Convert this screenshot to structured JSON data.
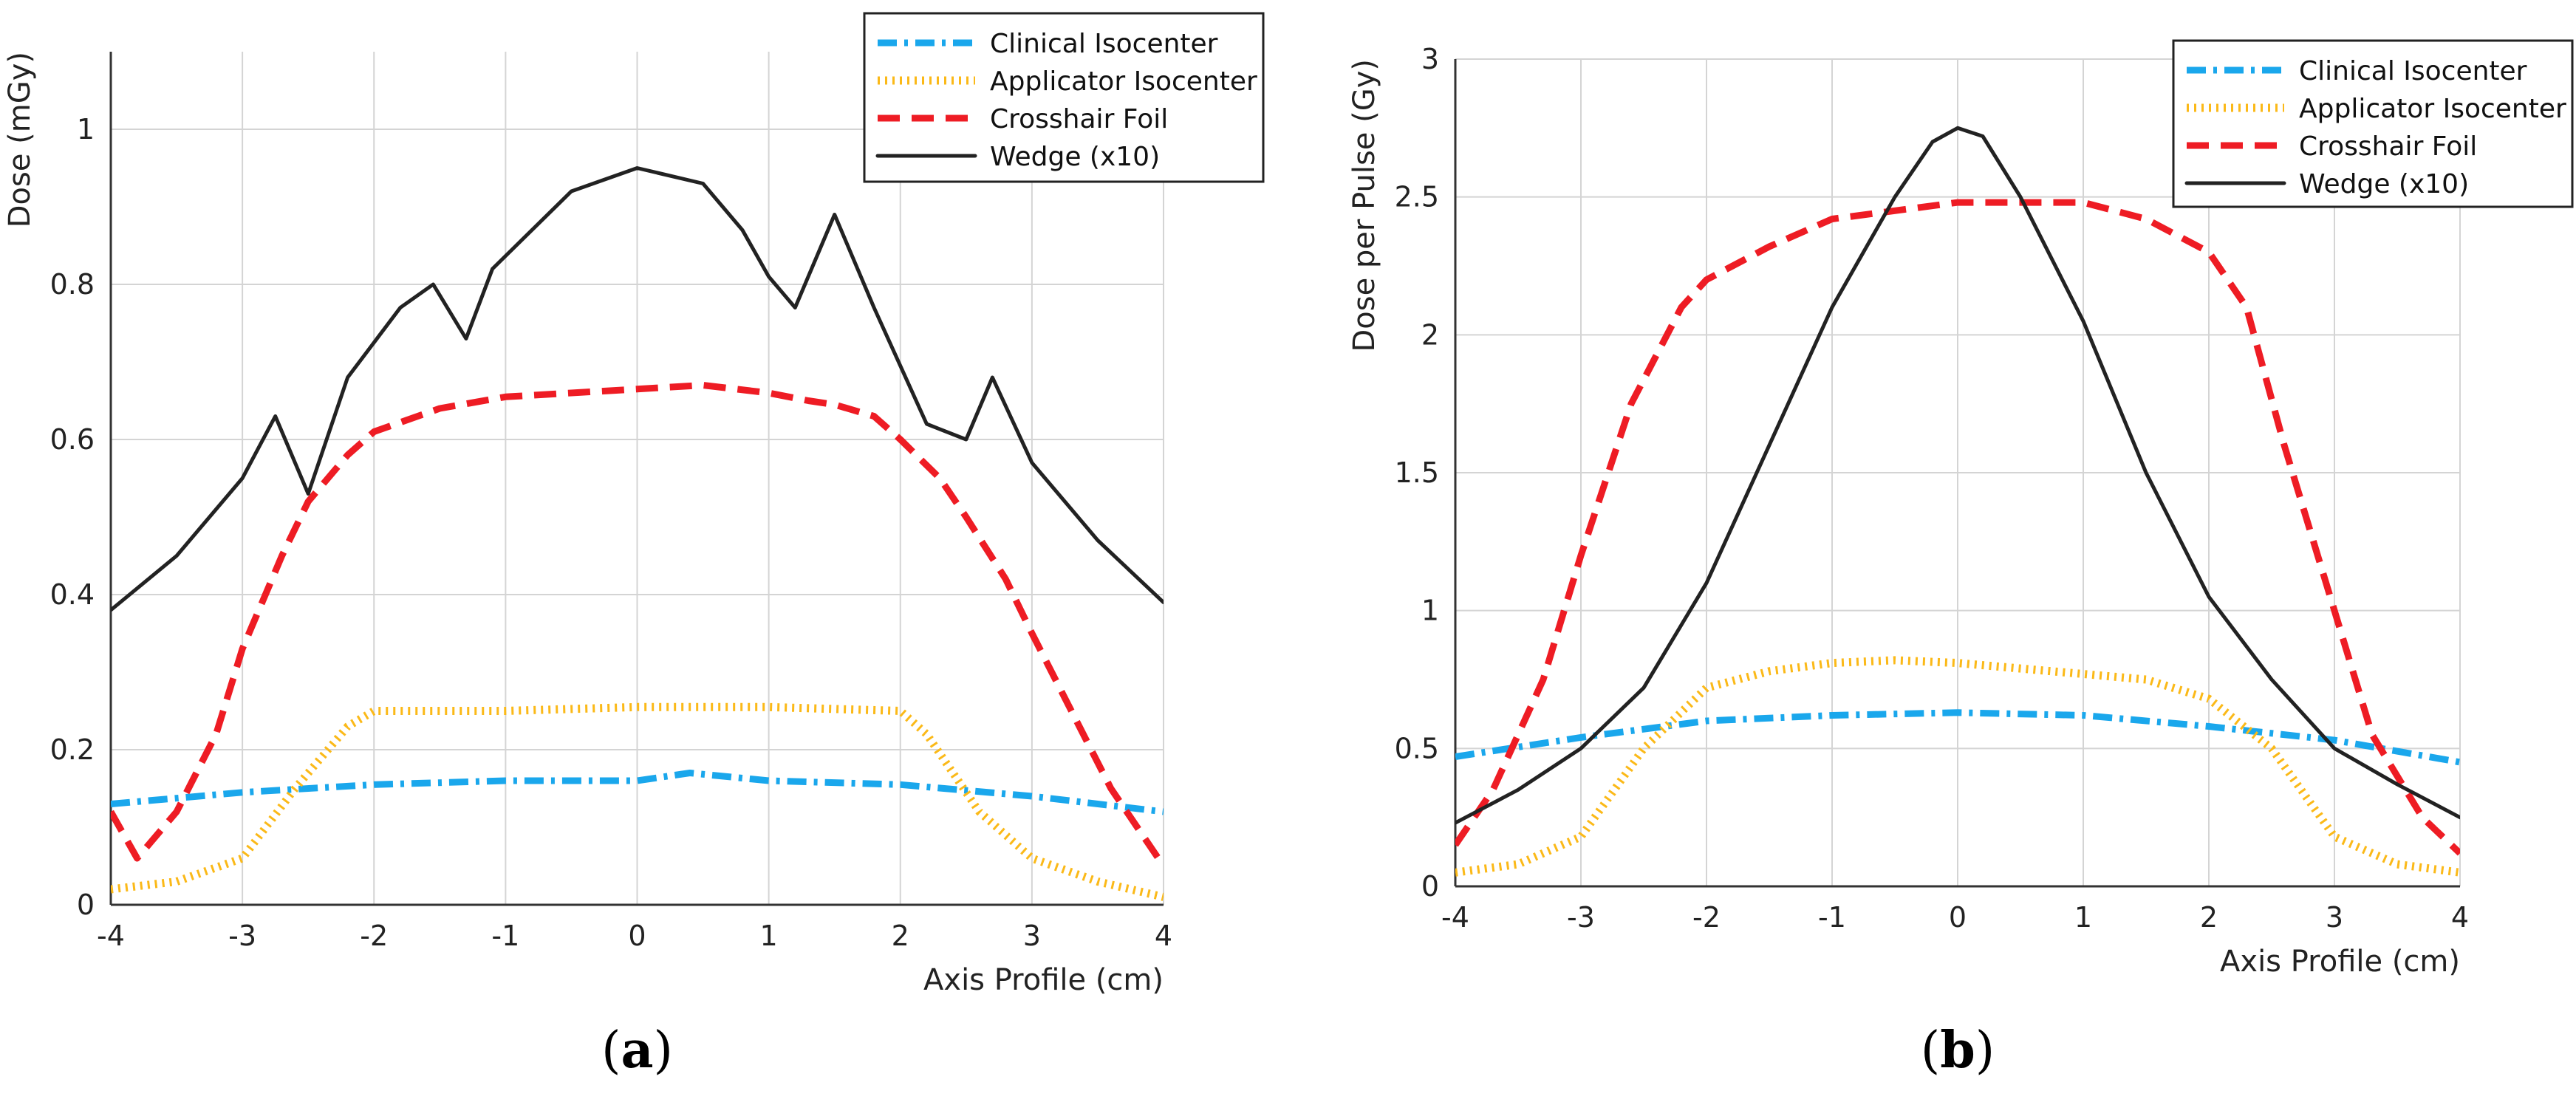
{
  "colors": {
    "clinical": "#1aa7ec",
    "applicator": "#fbb918",
    "crosshair": "#ee1c24",
    "wedge": "#222222",
    "grid": "#d4d4d4",
    "axis": "#333333"
  },
  "chart_data": [
    {
      "type": "line",
      "panel_label": {
        "open": "(",
        "letter": "a",
        "close": ")"
      },
      "xlabel": "Axis Profile (cm)",
      "ylabel": "Dose (mGy)",
      "xlim": [
        -4,
        4
      ],
      "ylim": [
        0,
        1.1
      ],
      "grid": true,
      "legend_position": "top-right",
      "x_ticks": [
        -4,
        -3,
        -2,
        -1,
        0,
        1,
        2,
        3,
        4
      ],
      "y_ticks": [
        0,
        0.2,
        0.4,
        0.6,
        0.8,
        1
      ],
      "x_tick_labels": [
        "-4",
        "-3",
        "-2",
        "-1",
        "0",
        "1",
        "2",
        "3",
        "4"
      ],
      "y_tick_labels": [
        "0",
        "0.2",
        "0.4",
        "0.6",
        "0.8",
        "1"
      ],
      "series": [
        {
          "key": "clinical",
          "name": "Clinical Isocenter",
          "style": "dashdot",
          "x": [
            -4,
            -3,
            -2,
            -1,
            0,
            0.4,
            1,
            2,
            3,
            4
          ],
          "y": [
            0.13,
            0.145,
            0.155,
            0.16,
            0.16,
            0.17,
            0.16,
            0.155,
            0.14,
            0.12
          ]
        },
        {
          "key": "applicator",
          "name": "Applicator Isocenter",
          "style": "dotted",
          "x": [
            -4,
            -3.5,
            -3,
            -2.6,
            -2.2,
            -2,
            -1,
            0,
            1,
            2,
            2.2,
            2.6,
            3,
            3.5,
            4
          ],
          "y": [
            0.02,
            0.03,
            0.06,
            0.15,
            0.23,
            0.25,
            0.25,
            0.255,
            0.255,
            0.25,
            0.22,
            0.12,
            0.06,
            0.03,
            0.01
          ]
        },
        {
          "key": "crosshair",
          "name": "Crosshair Foil",
          "style": "dashed",
          "x": [
            -4,
            -3.8,
            -3.5,
            -3.2,
            -3,
            -2.7,
            -2.5,
            -2.2,
            -2,
            -1.5,
            -1,
            -0.5,
            0,
            0.5,
            1,
            1.3,
            1.5,
            1.8,
            2,
            2.3,
            2.5,
            2.8,
            3,
            3.3,
            3.6,
            4
          ],
          "y": [
            0.12,
            0.06,
            0.12,
            0.22,
            0.33,
            0.45,
            0.52,
            0.58,
            0.61,
            0.64,
            0.655,
            0.66,
            0.665,
            0.67,
            0.66,
            0.65,
            0.645,
            0.63,
            0.6,
            0.55,
            0.5,
            0.42,
            0.35,
            0.25,
            0.15,
            0.05
          ]
        },
        {
          "key": "wedge",
          "name": "Wedge (x10)",
          "style": "solid",
          "x": [
            -4,
            -3.5,
            -3,
            -2.75,
            -2.5,
            -2.2,
            -1.8,
            -1.55,
            -1.3,
            -1.1,
            -0.8,
            -0.5,
            0,
            0.5,
            0.8,
            1,
            1.2,
            1.5,
            1.8,
            2.2,
            2.5,
            2.7,
            3,
            3.5,
            4
          ],
          "y": [
            0.38,
            0.45,
            0.55,
            0.63,
            0.53,
            0.68,
            0.77,
            0.8,
            0.73,
            0.82,
            0.87,
            0.92,
            0.95,
            0.93,
            0.87,
            0.81,
            0.77,
            0.89,
            0.77,
            0.62,
            0.6,
            0.68,
            0.57,
            0.47,
            0.39
          ]
        }
      ]
    },
    {
      "type": "line",
      "panel_label": {
        "open": "(",
        "letter": "b",
        "close": ")"
      },
      "xlabel": "Axis Profile (cm)",
      "ylabel": "Dose per Pulse (Gy)",
      "xlim": [
        -4,
        4
      ],
      "ylim": [
        0,
        3
      ],
      "grid": true,
      "legend_position": "top-right",
      "x_ticks": [
        -4,
        -3,
        -2,
        -1,
        0,
        1,
        2,
        3,
        4
      ],
      "y_ticks": [
        0,
        0.5,
        1,
        1.5,
        2,
        2.5,
        3
      ],
      "x_tick_labels": [
        "-4",
        "-3",
        "-2",
        "-1",
        "0",
        "1",
        "2",
        "3",
        "4"
      ],
      "y_tick_labels": [
        "0",
        "0.5",
        "1",
        "1.5",
        "2",
        "2.5",
        "3"
      ],
      "series": [
        {
          "key": "clinical",
          "name": "Clinical Isocenter",
          "style": "dashdot",
          "x": [
            -4,
            -3,
            -2,
            -1,
            0,
            1,
            2,
            3,
            4
          ],
          "y": [
            0.47,
            0.54,
            0.6,
            0.62,
            0.63,
            0.62,
            0.58,
            0.53,
            0.45
          ]
        },
        {
          "key": "applicator",
          "name": "Applicator Isocenter",
          "style": "dotted",
          "x": [
            -4,
            -3.5,
            -3,
            -2.5,
            -2,
            -1.5,
            -1,
            -0.5,
            0,
            0.5,
            1,
            1.5,
            2,
            2.5,
            3,
            3.5,
            4
          ],
          "y": [
            0.05,
            0.08,
            0.18,
            0.5,
            0.72,
            0.78,
            0.81,
            0.82,
            0.81,
            0.79,
            0.77,
            0.75,
            0.68,
            0.5,
            0.18,
            0.08,
            0.05
          ]
        },
        {
          "key": "crosshair",
          "name": "Crosshair Foil",
          "style": "dashed",
          "x": [
            -4,
            -3.7,
            -3.3,
            -3,
            -2.6,
            -2.2,
            -2,
            -1.5,
            -1,
            -0.5,
            0,
            0.5,
            1,
            1.5,
            2,
            2.3,
            2.6,
            3,
            3.3,
            3.7,
            4
          ],
          "y": [
            0.15,
            0.35,
            0.75,
            1.2,
            1.75,
            2.1,
            2.2,
            2.32,
            2.42,
            2.45,
            2.48,
            2.48,
            2.48,
            2.42,
            2.3,
            2.1,
            1.6,
            1.0,
            0.55,
            0.25,
            0.12
          ]
        },
        {
          "key": "wedge",
          "name": "Wedge (x10)",
          "style": "solid",
          "x": [
            -4,
            -3.5,
            -3,
            -2.5,
            -2,
            -1.5,
            -1,
            -0.5,
            -0.2,
            0,
            0.2,
            0.5,
            1,
            1.5,
            2,
            2.5,
            3,
            3.5,
            4
          ],
          "y": [
            0.23,
            0.35,
            0.5,
            0.72,
            1.1,
            1.6,
            2.1,
            2.5,
            2.7,
            2.75,
            2.72,
            2.5,
            2.05,
            1.5,
            1.05,
            0.75,
            0.5,
            0.37,
            0.25
          ]
        }
      ]
    }
  ]
}
